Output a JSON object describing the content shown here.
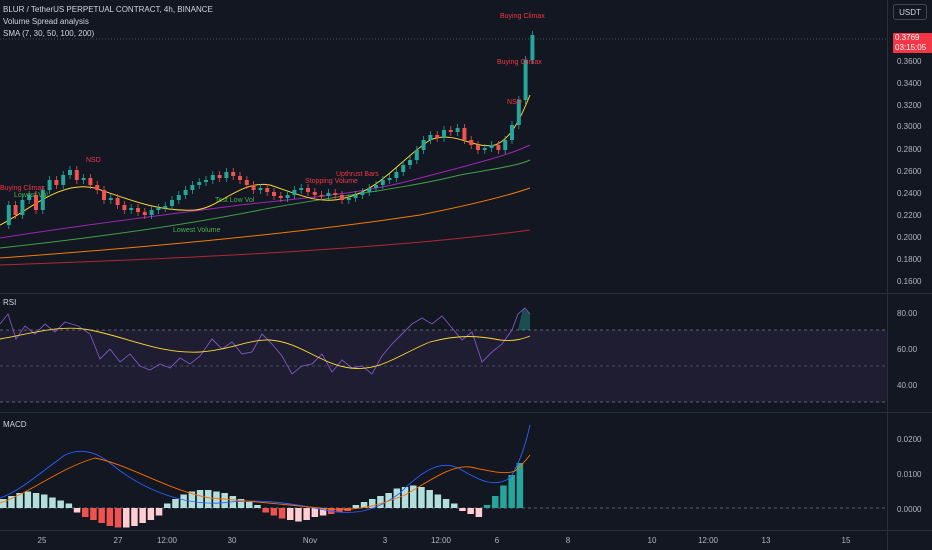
{
  "symbol_title": "BLUR / TetherUS PERPETUAL CONTRACT, 4h, BINANCE",
  "indicator_1": "Volume Spread analysis",
  "indicator_2": "SMA (7, 30, 50, 100, 200)",
  "currency_button": "USDT",
  "last_price": "0.3769",
  "countdown": "03:15:05",
  "price_axis": [
    "0.3600",
    "0.3400",
    "0.3200",
    "0.3000",
    "0.2800",
    "0.2600",
    "0.2400",
    "0.2200",
    "0.2000",
    "0.1800",
    "0.1600"
  ],
  "rsi": {
    "title": "RSI",
    "axis": [
      "80.00",
      "60.00",
      "40.00"
    ]
  },
  "macd": {
    "title": "MACD",
    "axis": [
      "0.0200",
      "0.0100",
      "0.0000"
    ]
  },
  "time_axis": [
    "25",
    "27",
    "12:00",
    "30",
    "Nov",
    "3",
    "12:00",
    "6",
    "8",
    "10",
    "12:00",
    "13",
    "15"
  ],
  "chart_tags": {
    "buying_climax_top": "Buying Climax",
    "buying_climax_mid": "Buying Climax",
    "ng_left": "NSD",
    "ng_right": "NSD",
    "buying_climax_left": "Buying Climax",
    "stopping_volume": "Stopping Volume",
    "upthrust": "Upthrust Bars",
    "lowvol_test": "Test Low Vol",
    "low_vol_left": "Lowest Vol",
    "lowvol_bottom": "Lowest Volume"
  },
  "colors": {
    "bull": "#26a69a",
    "bear": "#ef5350",
    "rsi": "#7e57c2",
    "rsi_ma": "#fdd835",
    "macd": "#2962ff",
    "signal": "#ff6d00"
  }
}
